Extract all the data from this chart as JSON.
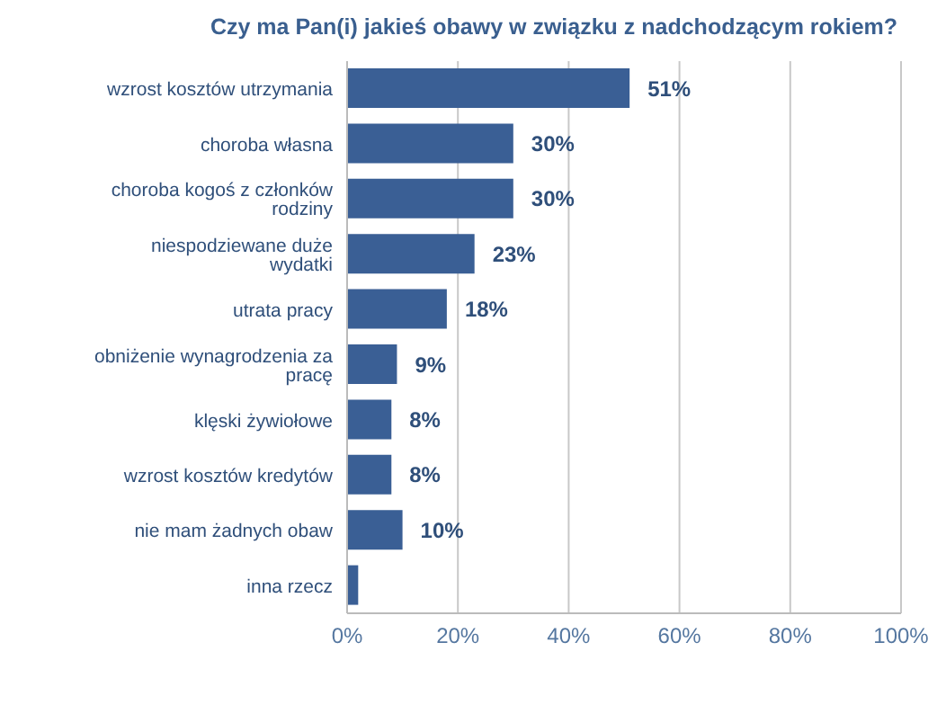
{
  "chart_data": {
    "type": "bar",
    "orientation": "horizontal",
    "title": "Czy ma Pan(i) jakieś obawy w związku z nadchodzącym rokiem?",
    "categories": [
      "wzrost kosztów utrzymania",
      "choroba własna",
      "choroba kogoś z członków rodziny",
      "niespodziewane duże wydatki",
      "utrata pracy",
      "obniżenie wynagrodzenia za pracę",
      "klęski żywiołowe",
      "wzrost kosztów kredytów",
      "nie mam żadnych obaw",
      "inna rzecz"
    ],
    "values": [
      51,
      30,
      30,
      23,
      18,
      9,
      8,
      8,
      10,
      2
    ],
    "value_labels": [
      "51%",
      "30%",
      "30%",
      "23%",
      "18%",
      "9%",
      "8%",
      "8%",
      "10%",
      null
    ],
    "color": "#3a5f95",
    "xlim": [
      0,
      100
    ],
    "xticks": [
      {
        "value": 0,
        "label": "0%"
      },
      {
        "value": 20,
        "label": "20%"
      },
      {
        "value": 40,
        "label": "40%"
      },
      {
        "value": 60,
        "label": "60%"
      },
      {
        "value": 80,
        "label": "80%"
      },
      {
        "value": 100,
        "label": "100%"
      }
    ],
    "grid": "x"
  }
}
